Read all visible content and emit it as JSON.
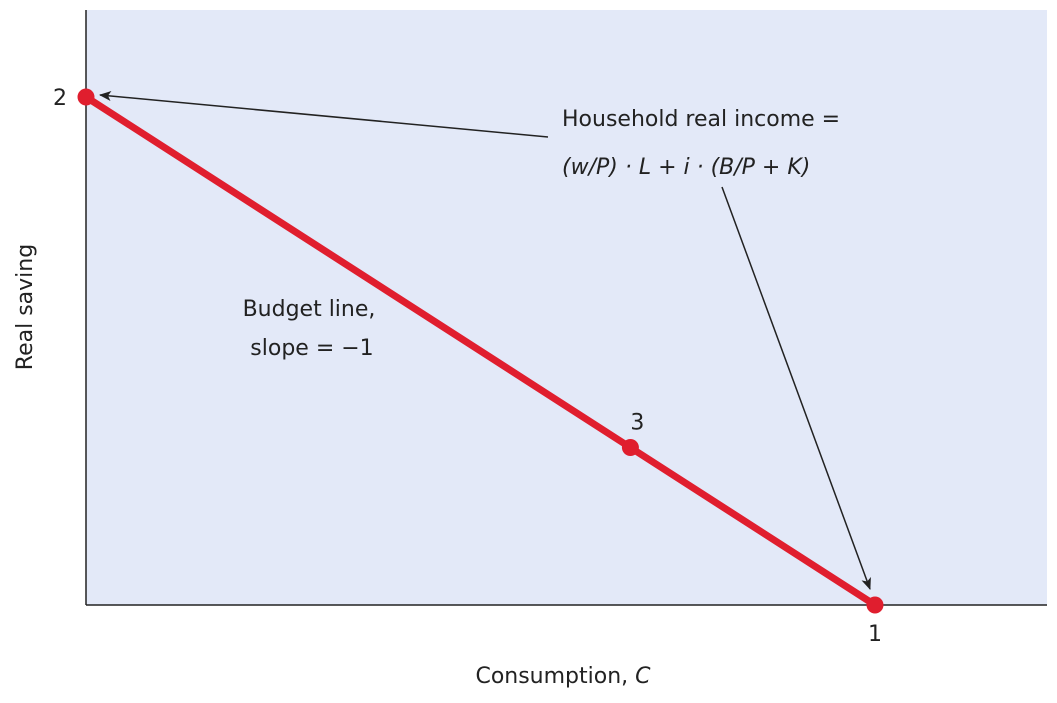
{
  "axes": {
    "x_label": "Consumption, ",
    "x_label_var": "C",
    "y_label": "Real saving"
  },
  "points": [
    {
      "label": "2",
      "c": 0,
      "s": 1
    },
    {
      "label": "1",
      "c": 1,
      "s": 0
    },
    {
      "label": "3",
      "c": 0.69,
      "s": 0.31
    }
  ],
  "budget_line": {
    "line1": "Budget line,",
    "line2": "slope = −1"
  },
  "income": {
    "title": "Household real income =",
    "formula": "(w/P) · L + i · (B/P + K)"
  },
  "colors": {
    "plot_bg": "#e3e9f8",
    "line": "#e01e2e",
    "axis": "#222222"
  }
}
